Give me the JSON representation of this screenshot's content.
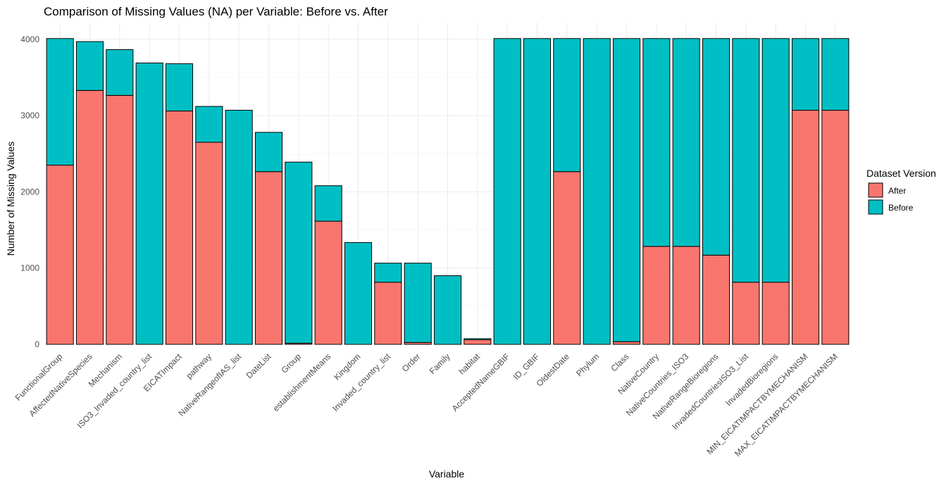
{
  "chart_data": {
    "type": "stacked_bar",
    "title": "Comparison of Missing Values (NA) per Variable: Before vs. After",
    "x_label": "Variable",
    "y_label": "Number of Missing Values",
    "legend_title": "Dataset Version",
    "legend_position": "right",
    "categories": [
      "FunctionalGroup",
      "AffectedNativeSpecies",
      "Mechanism",
      "ISO3_Invaded_country_list",
      "EICATImpact",
      "pathway",
      "NativeRangeofIAS_list",
      "DateList",
      "Group",
      "establishmentMeans",
      "Kingdom",
      "Invaded_country_list",
      "Order",
      "Family",
      "habitat",
      "AcceptedNameGBIF",
      "ID_GBIF",
      "OldestDate",
      "Phylum",
      "Class",
      "NativeCountry",
      "NativeCountries_ISO3",
      "NativeRangeBioregions",
      "InvadedCountriesISO3_List",
      "InvadedBioregions",
      "MIN_EICATIMPACTBYMECHANISM",
      "MAX_EICATIMPACTBYMECHANISM"
    ],
    "series": [
      {
        "name": "After",
        "color": "#F8766D",
        "values": [
          2350,
          3330,
          3265,
          0,
          3060,
          2650,
          0,
          2265,
          15,
          1615,
          0,
          815,
          25,
          0,
          60,
          0,
          0,
          2265,
          0,
          35,
          1285,
          1285,
          1170,
          815,
          815,
          3070,
          3070
        ]
      },
      {
        "name": "Before",
        "color": "#00BFC4",
        "values": [
          1660,
          640,
          600,
          3690,
          620,
          470,
          3070,
          515,
          2375,
          465,
          1335,
          250,
          1040,
          900,
          15,
          4010,
          4010,
          1745,
          4010,
          3975,
          2725,
          2725,
          2840,
          3195,
          3195,
          940,
          940
        ]
      }
    ],
    "ylim": [
      0,
      4220
    ],
    "yticks": [
      0,
      1000,
      2000,
      3000,
      4000
    ],
    "y_minor_ticks": [
      500,
      1500,
      2500,
      3500
    ],
    "grid": true
  }
}
